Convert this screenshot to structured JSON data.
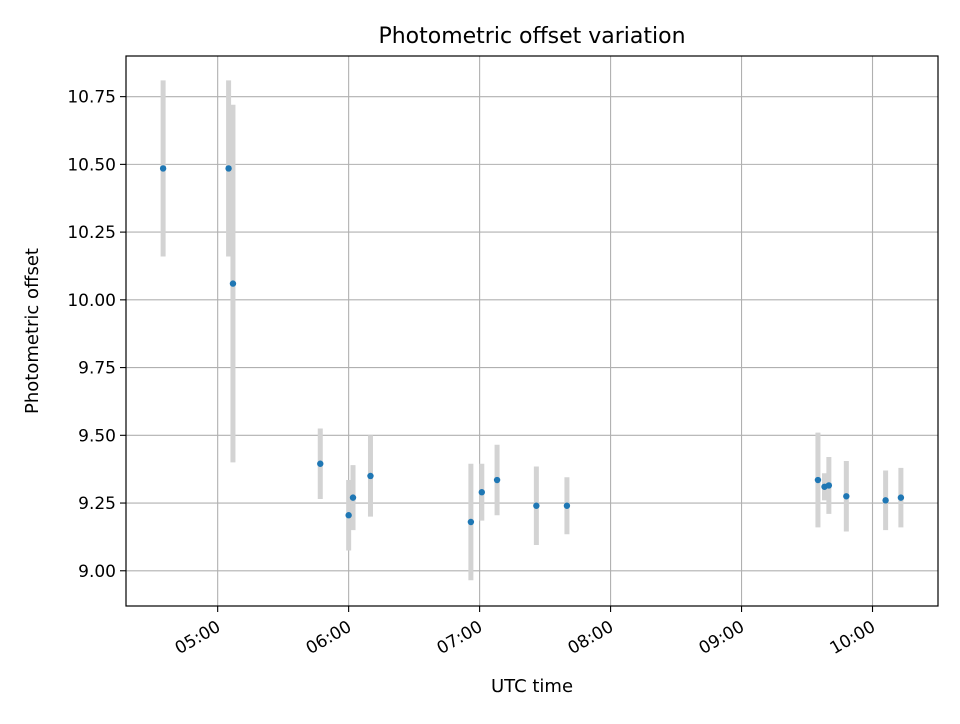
{
  "chart_data": {
    "type": "scatter",
    "title": "Photometric offset variation",
    "xlabel": "UTC time",
    "ylabel": "Photometric offset",
    "x_unit": "UTC time (HH:MM)",
    "xlim": [
      "04:18",
      "10:30"
    ],
    "ylim": [
      8.87,
      10.9
    ],
    "x_ticks": [
      "05:00",
      "06:00",
      "07:00",
      "08:00",
      "09:00",
      "10:00"
    ],
    "y_ticks": [
      "9.00",
      "9.25",
      "9.50",
      "9.75",
      "10.00",
      "10.25",
      "10.50",
      "10.75"
    ],
    "grid": true,
    "legend": "none",
    "colors": {
      "points": "#1f77b4",
      "error_bars": "#d3d3d3",
      "grid": "#b0b0b0"
    },
    "series": [
      {
        "points": [
          {
            "x": "04:35",
            "y": 10.485,
            "err": 0.325
          },
          {
            "x": "05:05",
            "y": 10.485,
            "err": 0.325
          },
          {
            "x": "05:07",
            "y": 10.06,
            "err": 0.66
          },
          {
            "x": "05:47",
            "y": 9.395,
            "err": 0.13
          },
          {
            "x": "06:00",
            "y": 9.205,
            "err": 0.13
          },
          {
            "x": "06:02",
            "y": 9.27,
            "err": 0.12
          },
          {
            "x": "06:10",
            "y": 9.35,
            "err": 0.15
          },
          {
            "x": "06:56",
            "y": 9.18,
            "err": 0.215
          },
          {
            "x": "07:01",
            "y": 9.29,
            "err": 0.105
          },
          {
            "x": "07:08",
            "y": 9.335,
            "err": 0.13
          },
          {
            "x": "07:26",
            "y": 9.24,
            "err": 0.145
          },
          {
            "x": "07:40",
            "y": 9.24,
            "err": 0.105
          },
          {
            "x": "09:35",
            "y": 9.335,
            "err": 0.175
          },
          {
            "x": "09:38",
            "y": 9.31,
            "err": 0.05
          },
          {
            "x": "09:40",
            "y": 9.315,
            "err": 0.105
          },
          {
            "x": "09:48",
            "y": 9.275,
            "err": 0.13
          },
          {
            "x": "10:06",
            "y": 9.26,
            "err": 0.11
          },
          {
            "x": "10:13",
            "y": 9.27,
            "err": 0.11
          }
        ]
      }
    ]
  }
}
